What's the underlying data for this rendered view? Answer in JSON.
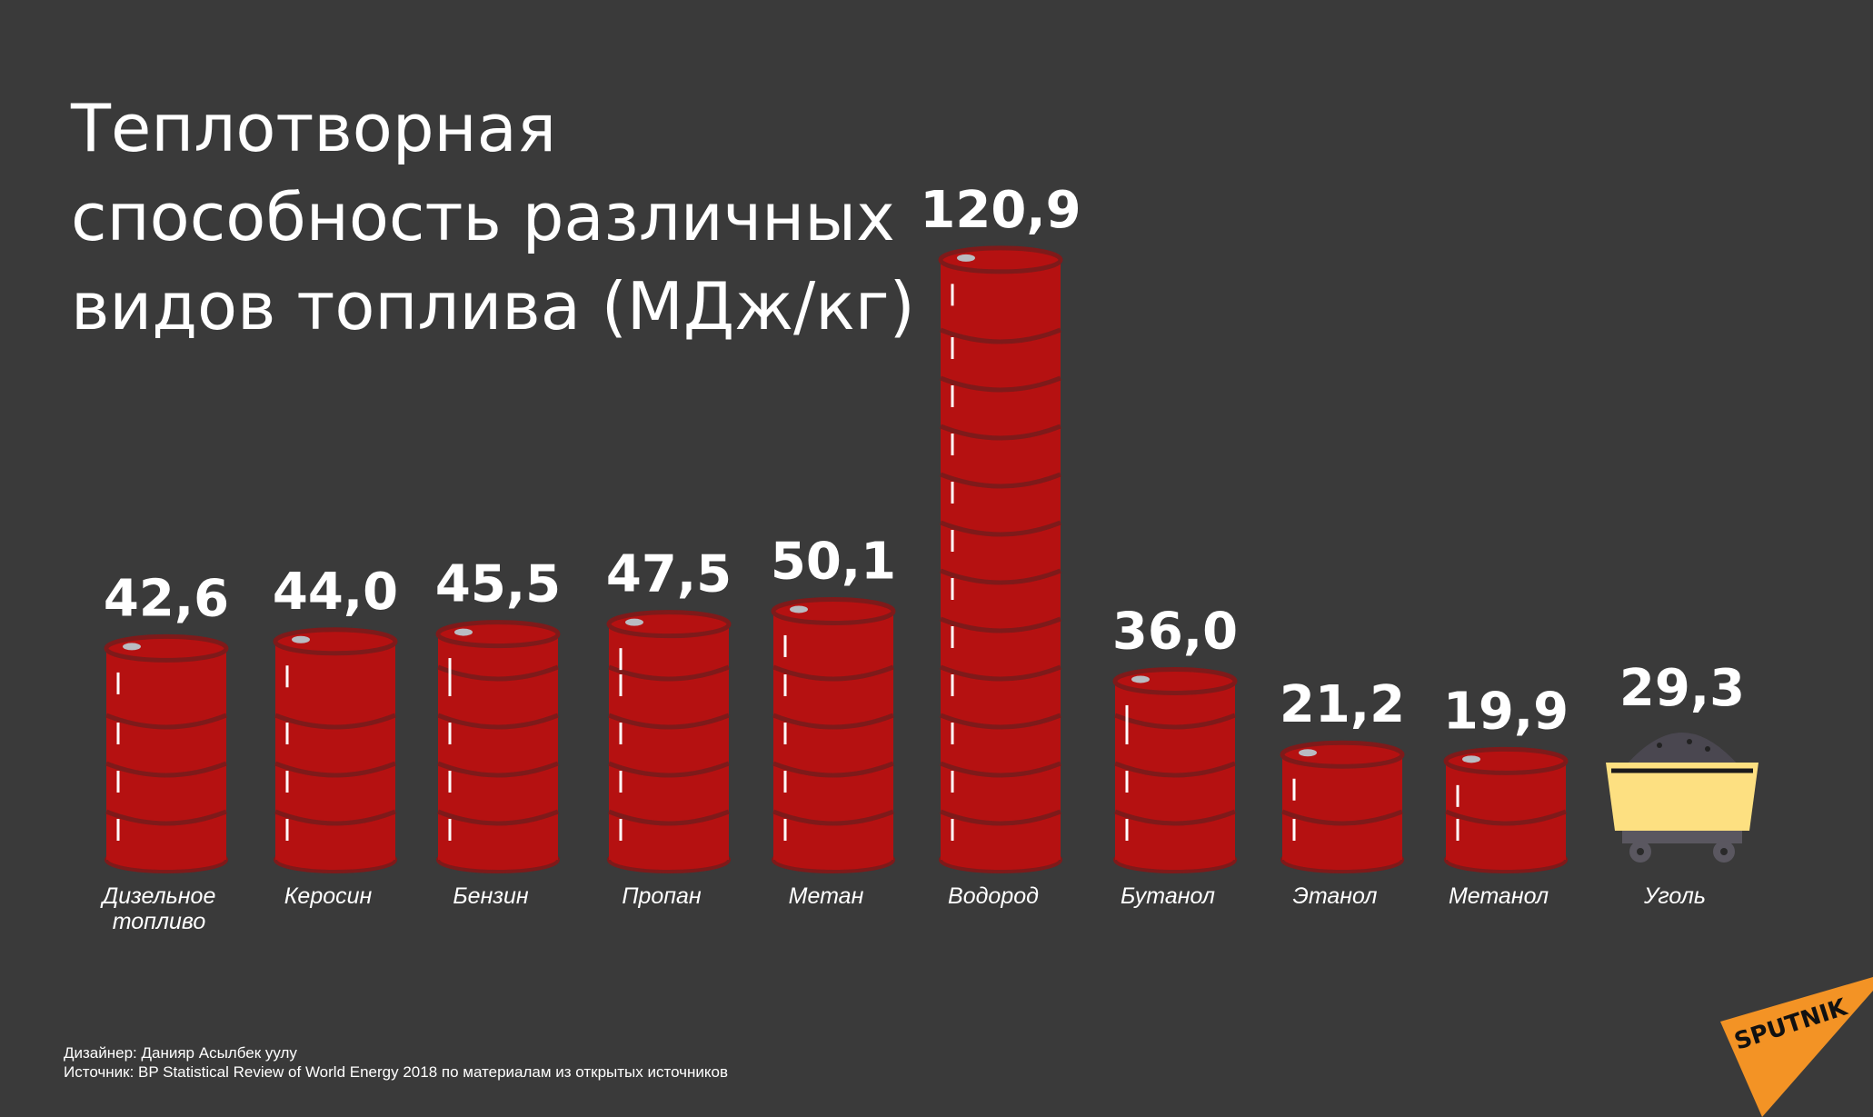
{
  "chart_data": {
    "type": "bar",
    "title": [
      "Теплотворная",
      "способность различных",
      "видов топлива (МДж/кг)"
    ],
    "categories": [
      [
        "Дизельное",
        "топливо"
      ],
      [
        "Керосин"
      ],
      [
        "Бензин"
      ],
      [
        "Пропан"
      ],
      [
        "Метан"
      ],
      [
        "Водород"
      ],
      [
        "Бутанол"
      ],
      [
        "Этанол"
      ],
      [
        "Метанол"
      ],
      [
        "Уголь"
      ]
    ],
    "values": [
      42.6,
      44.0,
      45.5,
      47.5,
      50.1,
      120.9,
      36.0,
      21.2,
      19.9,
      29.3
    ],
    "value_labels": [
      "42,6",
      "44,0",
      "45,5",
      "47,5",
      "50,1",
      "120,9",
      "36,0",
      "21,2",
      "19,9",
      "29,3"
    ],
    "mark_style": [
      "barrel",
      "barrel",
      "barrel",
      "barrel",
      "barrel",
      "barrel",
      "barrel",
      "barrel",
      "barrel",
      "coal-cart"
    ],
    "unit": "МДж/кг",
    "xlabel": "",
    "ylabel": "",
    "ylim": [
      0,
      125
    ],
    "grid": false
  },
  "footer": {
    "designer": "Дизайнер: Данияр Асылбек уулу",
    "source": "Источник: BP Statistical Review of World Energy 2018 по материалам из открытых источников"
  },
  "logo": {
    "text": "SPUTNIK"
  },
  "colors": {
    "background": "#3a3a3a",
    "barrel": "#b51111",
    "barrel_ring": "#7e1a1a",
    "cap": "#b9bcc2",
    "cart": "#fde081",
    "logo": "#f39325"
  }
}
